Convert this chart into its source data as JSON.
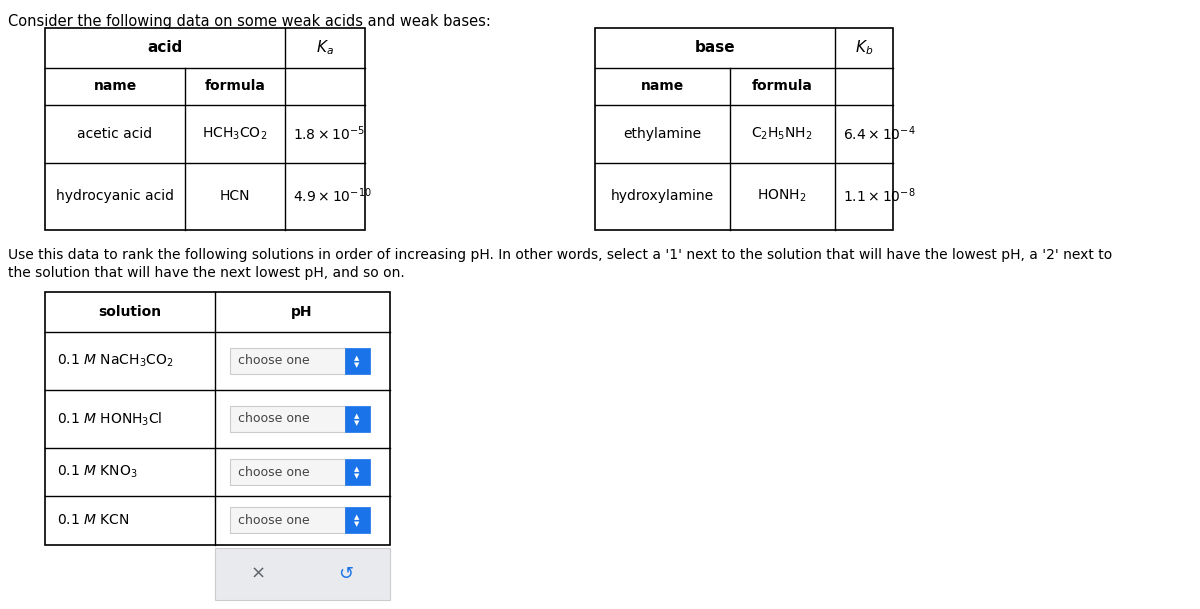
{
  "title": "Consider the following data on some weak acids and weak bases:",
  "bg_color": "#ffffff",
  "text_color": "#000000",
  "acid_header": "acid",
  "base_header": "base",
  "ka_label": "$K_a$",
  "kb_label": "$K_b$",
  "name_label": "name",
  "formula_label": "formula",
  "acid_rows": [
    {
      "name": "acetic acid",
      "formula": "$\\mathrm{HCH_3CO_2}$",
      "ka": "$1.8 \\times 10^{-5}$"
    },
    {
      "name": "hydrocyanic acid",
      "formula": "HCN",
      "ka": "$4.9 \\times 10^{-10}$"
    }
  ],
  "base_rows": [
    {
      "name": "ethylamine",
      "formula": "$\\mathrm{C_2H_5NH_2}$",
      "kb": "$6.4 \\times 10^{-4}$"
    },
    {
      "name": "hydroxylamine",
      "formula": "$\\mathrm{HONH_2}$",
      "kb": "$1.1 \\times 10^{-8}$"
    }
  ],
  "instruction_line1": "Use this data to rank the following solutions in order of increasing pH. In other words, select a '1' next to the solution that will have the lowest pH, a '2' next to",
  "instruction_line2": "the solution that will have the next lowest pH, and so on.",
  "sol_header_solution": "solution",
  "sol_header_ph": "pH",
  "solutions": [
    "0.1 $M$ NaCH$_3$CO$_2$",
    "0.1 $M$ HONH$_3$Cl",
    "0.1 $M$ KNO$_3$",
    "0.1 $M$ KCN"
  ],
  "choose_one_text": "choose one",
  "x_symbol": "×",
  "undo_symbol": "↺"
}
